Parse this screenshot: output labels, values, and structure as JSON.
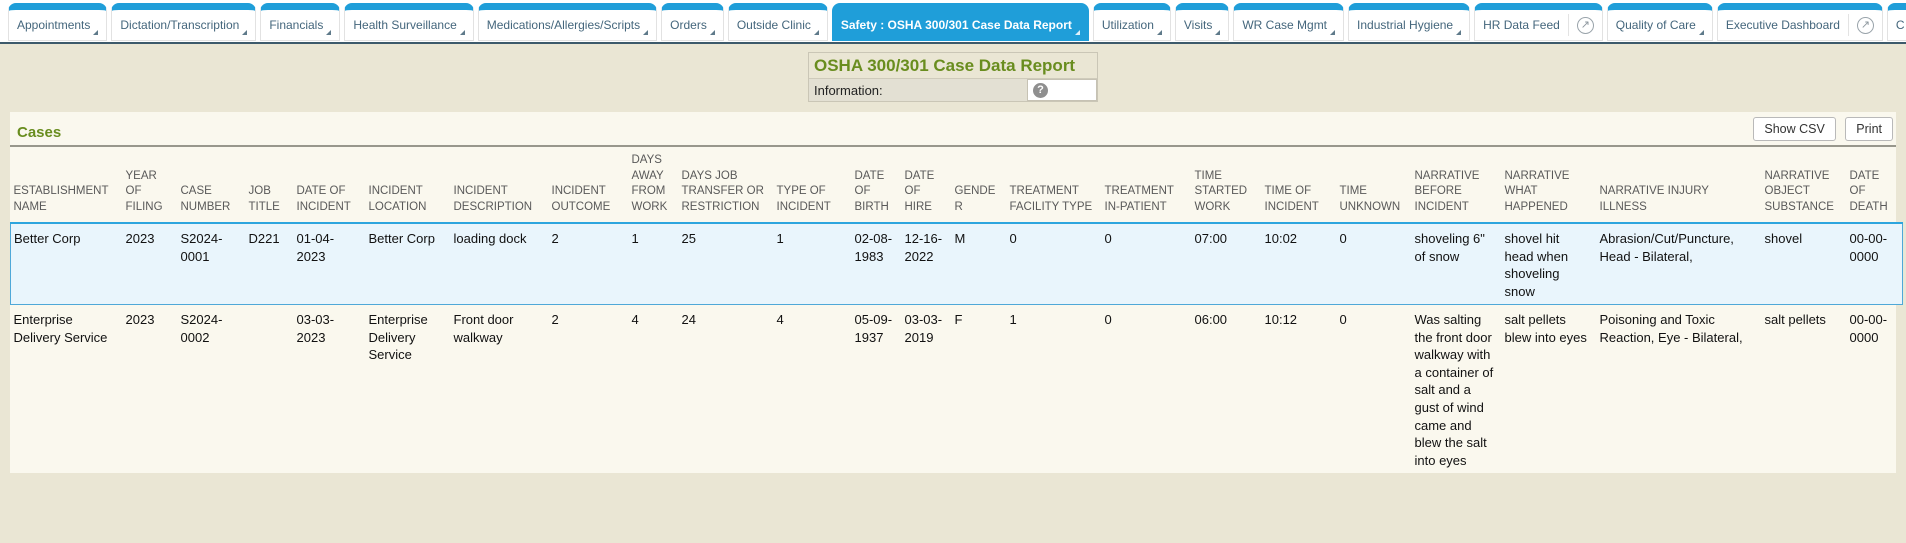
{
  "colors": {
    "accent_blue": "#1f9ed9",
    "title_green": "#698d1f",
    "selected_row_bg": "#e9f5fc",
    "page_background": "#eae6d4"
  },
  "tab_bar": {
    "tabs": [
      {
        "label": "Appointments",
        "type": "caret",
        "active": false
      },
      {
        "label": "Dictation/Transcription",
        "type": "caret",
        "active": false
      },
      {
        "label": "Financials",
        "type": "caret",
        "active": false
      },
      {
        "label": "Health Surveillance",
        "type": "caret",
        "active": false
      },
      {
        "label": "Medications/Allergies/Scripts",
        "type": "caret",
        "active": false
      },
      {
        "label": "Orders",
        "type": "caret",
        "active": false
      },
      {
        "label": "Outside Clinic",
        "type": "caret",
        "active": false
      },
      {
        "label": "Safety : OSHA 300/301 Case Data Report",
        "type": "caret",
        "active": true
      },
      {
        "label": "Utilization",
        "type": "caret",
        "active": false
      },
      {
        "label": "Visits",
        "type": "caret",
        "active": false
      },
      {
        "label": "WR Case Mgmt",
        "type": "caret",
        "active": false
      },
      {
        "label": "Industrial Hygiene",
        "type": "caret",
        "active": false
      },
      {
        "label": "HR Data Feed",
        "type": "external",
        "active": false
      },
      {
        "label": "Quality of Care",
        "type": "caret",
        "active": false
      },
      {
        "label": "Executive Dashboard",
        "type": "external",
        "active": false
      },
      {
        "label": "C",
        "type": "partial",
        "active": false
      }
    ],
    "external_icon_glyph": "↗"
  },
  "report_header": {
    "title": "OSHA 300/301 Case Data Report",
    "info_label": "Information:",
    "help_glyph": "?"
  },
  "cases": {
    "section_title": "Cases",
    "show_csv_label": "Show CSV",
    "print_label": "Print",
    "columns": [
      "ESTABLISHMENT NAME",
      "YEAR OF FILING",
      "CASE NUMBER",
      "JOB TITLE",
      "DATE OF INCIDENT",
      "INCIDENT LOCATION",
      "INCIDENT DESCRIPTION",
      "INCIDENT OUTCOME",
      "DAYS AWAY FROM WORK",
      "DAYS JOB TRANSFER OR RESTRICTION",
      "TYPE OF INCIDENT",
      "DATE OF BIRTH",
      "DATE OF HIRE",
      "GENDER",
      "TREATMENT FACILITY TYPE",
      "TREATMENT IN-PATIENT",
      "TIME STARTED WORK",
      "TIME OF INCIDENT",
      "TIME UNKNOWN",
      "NARRATIVE BEFORE INCIDENT",
      "NARRATIVE WHAT HAPPENED",
      "NARRATIVE INJURY ILLNESS",
      "NARRATIVE OBJECT SUBSTANCE",
      "DATE OF DEATH"
    ],
    "rows": [
      {
        "selected": true,
        "cells": [
          "Better Corp",
          "2023",
          "S2024-0001",
          "D221",
          "01-04-2023",
          "Better Corp",
          "loading dock",
          "2",
          "1",
          "25",
          "1",
          "02-08-1983",
          "12-16-2022",
          "M",
          "0",
          "0",
          "07:00",
          "10:02",
          "0",
          "shoveling 6\" of snow",
          "shovel hit head when shoveling snow",
          "Abrasion/Cut/Puncture, Head - Bilateral,",
          "shovel",
          "00-00-0000"
        ]
      },
      {
        "selected": false,
        "cells": [
          "Enterprise Delivery Service",
          "2023",
          "S2024-0002",
          "",
          "03-03-2023",
          "Enterprise Delivery Service",
          "Front door walkway",
          "2",
          "4",
          "24",
          "4",
          "05-09-1937",
          "03-03-2019",
          "F",
          "1",
          "0",
          "06:00",
          "10:12",
          "0",
          "Was salting the front door walkway with a container of salt and a gust of wind came and blew the salt into eyes",
          "salt pellets blew into eyes",
          "Poisoning and Toxic Reaction, Eye - Bilateral,",
          "salt pellets",
          "00-00-0000"
        ]
      }
    ]
  }
}
